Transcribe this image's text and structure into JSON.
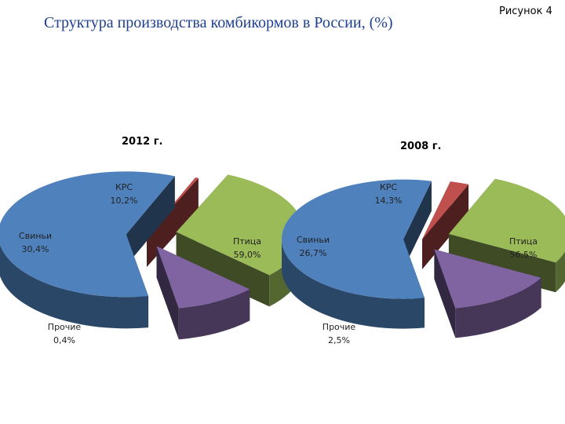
{
  "header": {
    "title": "Структура производства комбикормов в России, (%)",
    "figure_label": "Рисунок 4"
  },
  "colors": {
    "Птица": "#4f81bd",
    "Свиньи": "#9bbb59",
    "КРС": "#8064a2",
    "Прочие": "#c0504d"
  },
  "chart_data": [
    {
      "type": "pie",
      "title": "2012 г.",
      "slices": [
        {
          "name": "Птица",
          "label": "Птица",
          "value": 59.0,
          "value_label": "59,0%"
        },
        {
          "name": "Прочие",
          "label": "Прочие",
          "value": 0.4,
          "value_label": "0,4%"
        },
        {
          "name": "Свиньи",
          "label": "Свиньи",
          "value": 30.4,
          "value_label": "30,4%"
        },
        {
          "name": "КРС",
          "label": "КРС",
          "value": 10.2,
          "value_label": "10,2%"
        }
      ]
    },
    {
      "type": "pie",
      "title": "2008 г.",
      "slices": [
        {
          "name": "Птица",
          "label": "Птица",
          "value": 56.5,
          "value_label": "56,5%"
        },
        {
          "name": "Прочие",
          "label": "Прочие",
          "value": 2.5,
          "value_label": "2,5%"
        },
        {
          "name": "Свиньи",
          "label": "Свиньи",
          "value": 26.7,
          "value_label": "26,7%"
        },
        {
          "name": "КРС",
          "label": "КРС",
          "value": 14.3,
          "value_label": "14,3%"
        }
      ]
    }
  ]
}
